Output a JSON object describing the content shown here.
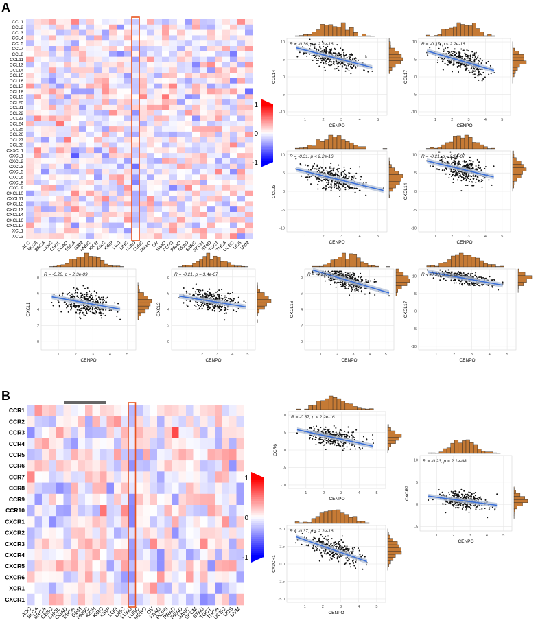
{
  "panels": {
    "A": {
      "letter": "A"
    },
    "B": {
      "letter": "B"
    }
  },
  "cancer_types": [
    "ACC",
    "BLCA",
    "BRCA",
    "CESC",
    "CHOL",
    "COAD",
    "ESCA",
    "GBM",
    "HNSC",
    "KICH",
    "KIRC",
    "KIRP",
    "LGG",
    "LIHC",
    "LUAD",
    "LUSC",
    "MESO",
    "OV",
    "PAAD",
    "PCPG",
    "PRAD",
    "READ",
    "SARC",
    "SKCM",
    "STAD",
    "TGCT",
    "THCA",
    "UCEC",
    "UCS",
    "UVM"
  ],
  "highlight_cancer": "LUAD",
  "colors": {
    "positive": "#ff0000",
    "negative": "#0000ff",
    "neutral": "#ffffff",
    "highlight_box": "#e8541e",
    "histogram": "#c57a35",
    "regression_line": "#3a6fd8",
    "confidence_band": "#b8c4d8",
    "scatter_bar": "#666666"
  },
  "chart_data": [
    {
      "type": "heatmap",
      "panel": "A",
      "rows": [
        "CCL1",
        "CCL2",
        "CCL3",
        "CCL4",
        "CCL5",
        "CCL7",
        "CCL8",
        "CCL11",
        "CCL13",
        "CCL14",
        "CCL15",
        "CCL16",
        "CCL17",
        "CCL18",
        "CCL19",
        "CCL20",
        "CCL21",
        "CCL22",
        "CCL23",
        "CCL24",
        "CCL25",
        "CCL26",
        "CCL27",
        "CCL28",
        "CX3CL1",
        "CXCL1",
        "CXCL2",
        "CXCL3",
        "CXCL5",
        "CXCL6",
        "CXCL8",
        "CXCL9",
        "CXCL10",
        "CXCL11",
        "CXCL12",
        "CXCL13",
        "CXCL14",
        "CXCL16",
        "CXCL17",
        "XCL1",
        "XCL2"
      ],
      "columns_ref": "cancer_types",
      "value_range": [
        -1,
        1
      ],
      "legend_ticks": [
        "1",
        "0",
        "-1"
      ],
      "highlight_column": "LUAD"
    },
    {
      "type": "heatmap",
      "panel": "B",
      "rows": [
        "CCR1",
        "CCR2",
        "CCR3",
        "CCR4",
        "CCR5",
        "CCR6",
        "CCR7",
        "CCR8",
        "CCR9",
        "CCR10",
        "CXCR1",
        "CXCR2",
        "CXCR3",
        "CXCR4",
        "CXCR5",
        "CXCR6",
        "XCR1",
        "CXCR1"
      ],
      "columns_ref": "cancer_types",
      "value_range": [
        -1,
        1
      ],
      "legend_ticks": [
        "1",
        "0",
        "-1"
      ],
      "highlight_column": "LUAD"
    },
    {
      "type": "scatter",
      "panel": "A",
      "xlabel": "CENPO",
      "ylabel": "CCL14",
      "annotation": "R = -0.36, p < 2.2e-16",
      "r": -0.36,
      "xlim": [
        0,
        5.5
      ],
      "xticks": [
        "1",
        "2",
        "3",
        "4",
        "5"
      ],
      "ylim": [
        -11,
        11
      ],
      "yticks": [
        "10",
        "5",
        "0",
        "-5",
        "-10"
      ],
      "yt": [
        10,
        5,
        0,
        -5,
        -10
      ],
      "intercept": 5.5,
      "slope": -1.35,
      "spread": 3.2,
      "seed": 11
    },
    {
      "type": "scatter",
      "panel": "A",
      "xlabel": "CENPO",
      "ylabel": "CCL17",
      "annotation": "R = -0.37, p < 2.2e-16",
      "r": -0.37,
      "xlim": [
        0,
        5.5
      ],
      "xticks": [
        "1",
        "2",
        "3",
        "4",
        "5"
      ],
      "ylim": [
        -11,
        11
      ],
      "yticks": [
        "10",
        "5",
        "0",
        "-5",
        "-10"
      ],
      "yt": [
        10,
        5,
        0,
        -5,
        -10
      ],
      "intercept": 4.5,
      "slope": -1.4,
      "spread": 3.2,
      "seed": 22
    },
    {
      "type": "scatter",
      "panel": "A",
      "xlabel": "CENPO",
      "ylabel": "CCL23",
      "annotation": "R = -0.31, p < 2.2e-16",
      "r": -0.31,
      "xlim": [
        0,
        5.5
      ],
      "xticks": [
        "1",
        "2",
        "3",
        "4",
        "5"
      ],
      "ylim": [
        -11,
        11
      ],
      "yticks": [
        "10",
        "5",
        "0",
        "-5",
        "-10"
      ],
      "yt": [
        10,
        5,
        0,
        -5,
        -10
      ],
      "intercept": 3.5,
      "slope": -1.2,
      "spread": 3.2,
      "seed": 33
    },
    {
      "type": "scatter",
      "panel": "A",
      "xlabel": "CENPO",
      "ylabel": "CXCL14",
      "annotation": "R = -0.21, p = 2.2e-07",
      "r": -0.21,
      "xlim": [
        0,
        5.5
      ],
      "xticks": [
        "1",
        "2",
        "3",
        "4",
        "5"
      ],
      "ylim": [
        -11,
        11
      ],
      "yticks": [
        "10",
        "5",
        "0",
        "-5",
        "-10"
      ],
      "yt": [
        10,
        5,
        0,
        -5,
        -10
      ],
      "intercept": 6.0,
      "slope": -1.1,
      "spread": 4.0,
      "seed": 44
    },
    {
      "type": "scatter",
      "panel": "A",
      "xlabel": "CENPO",
      "ylabel": "CXCL1",
      "annotation": "R = -0.28, p = 2.3e-09",
      "r": -0.28,
      "xlim": [
        0,
        5.5
      ],
      "xticks": [
        "1",
        "2",
        "3",
        "4",
        "5"
      ],
      "ylim": [
        -1,
        9
      ],
      "yticks": [
        "8",
        "6",
        "4",
        "2",
        "0"
      ],
      "yt": [
        8,
        6,
        4,
        2,
        0
      ],
      "intercept": 4.8,
      "slope": -0.38,
      "spread": 1.6,
      "seed": 55
    },
    {
      "type": "scatter",
      "panel": "A",
      "xlabel": "CENPO",
      "ylabel": "CXCL2",
      "annotation": "R = -0.21, p = 3.4e-07",
      "r": -0.21,
      "xlim": [
        0,
        5.5
      ],
      "xticks": [
        "1",
        "2",
        "3",
        "4",
        "5"
      ],
      "ylim": [
        -1,
        9
      ],
      "yticks": [
        "8",
        "6",
        "4",
        "2",
        "0"
      ],
      "yt": [
        8,
        6,
        4,
        2,
        0
      ],
      "intercept": 5.0,
      "slope": -0.3,
      "spread": 1.4,
      "seed": 66
    },
    {
      "type": "scatter",
      "panel": "A",
      "xlabel": "CENPO",
      "ylabel": "CXCL16",
      "annotation": "R = -0.29, p = 9.6e-12",
      "r": -0.29,
      "xlim": [
        0,
        5.5
      ],
      "xticks": [
        "1",
        "2",
        "3",
        "4",
        "5"
      ],
      "ylim": [
        -1,
        9
      ],
      "yticks": [
        "8",
        "6",
        "4",
        "2",
        "0"
      ],
      "yt": [
        8,
        6,
        4,
        2,
        0
      ],
      "intercept": 7.6,
      "slope": -0.6,
      "spread": 1.2,
      "seed": 77
    },
    {
      "type": "scatter",
      "panel": "A",
      "xlabel": "CENPO",
      "ylabel": "CXCL17",
      "annotation": "R = -0.30, p < 2.2e-16",
      "r": -0.3,
      "xlim": [
        0,
        5.5
      ],
      "xticks": [
        "1",
        "2",
        "3",
        "4",
        "5"
      ],
      "ylim": [
        -11,
        12
      ],
      "yticks": [
        "10",
        "5",
        "0",
        "-5",
        "-10"
      ],
      "yt": [
        10,
        5,
        0,
        -5,
        -10
      ],
      "intercept": 9.3,
      "slope": -0.9,
      "spread": 1.8,
      "seed": 88
    },
    {
      "type": "scatter",
      "panel": "B",
      "xlabel": "CENPO",
      "ylabel": "CCR6",
      "annotation": "R = -0.37, p < 2.2e-16",
      "r": -0.37,
      "xlim": [
        0,
        5.5
      ],
      "xticks": [
        "1",
        "2",
        "3",
        "4",
        "5"
      ],
      "ylim": [
        -11,
        11
      ],
      "yticks": [
        "10",
        "5",
        "0",
        "-5",
        "-10"
      ],
      "yt": [
        10,
        5,
        0,
        -5,
        -10
      ],
      "intercept": 3.5,
      "slope": -1.1,
      "spread": 2.8,
      "seed": 99
    },
    {
      "type": "scatter",
      "panel": "B",
      "xlabel": "CENPO",
      "ylabel": "CXCR2",
      "annotation": "R = -0.23, p = 2.1e-08",
      "r": -0.23,
      "xlim": [
        0,
        5.5
      ],
      "xticks": [
        "1",
        "2",
        "3",
        "4",
        "5"
      ],
      "ylim": [
        -6,
        11
      ],
      "yticks": [
        "10",
        "5",
        "0",
        "-5"
      ],
      "yt": [
        10,
        5,
        0,
        -5
      ],
      "intercept": 0.8,
      "slope": -0.5,
      "spread": 2.0,
      "seed": 111
    },
    {
      "type": "scatter",
      "panel": "B",
      "xlabel": "CENPO",
      "ylabel": "CX3CR1",
      "annotation": "R = -0.37, p < 2.2e-16",
      "r": -0.37,
      "xlim": [
        0,
        5.5
      ],
      "xticks": [
        "1",
        "2",
        "3",
        "4",
        "5"
      ],
      "ylim": [
        -5.5,
        5.5
      ],
      "yticks": [
        "5.0",
        "2.5",
        "0.0",
        "-2.5",
        "-5.0"
      ],
      "yt": [
        5,
        2.5,
        0,
        -2.5,
        -5
      ],
      "intercept": 2.0,
      "slope": -0.9,
      "spread": 1.6,
      "seed": 122
    }
  ]
}
